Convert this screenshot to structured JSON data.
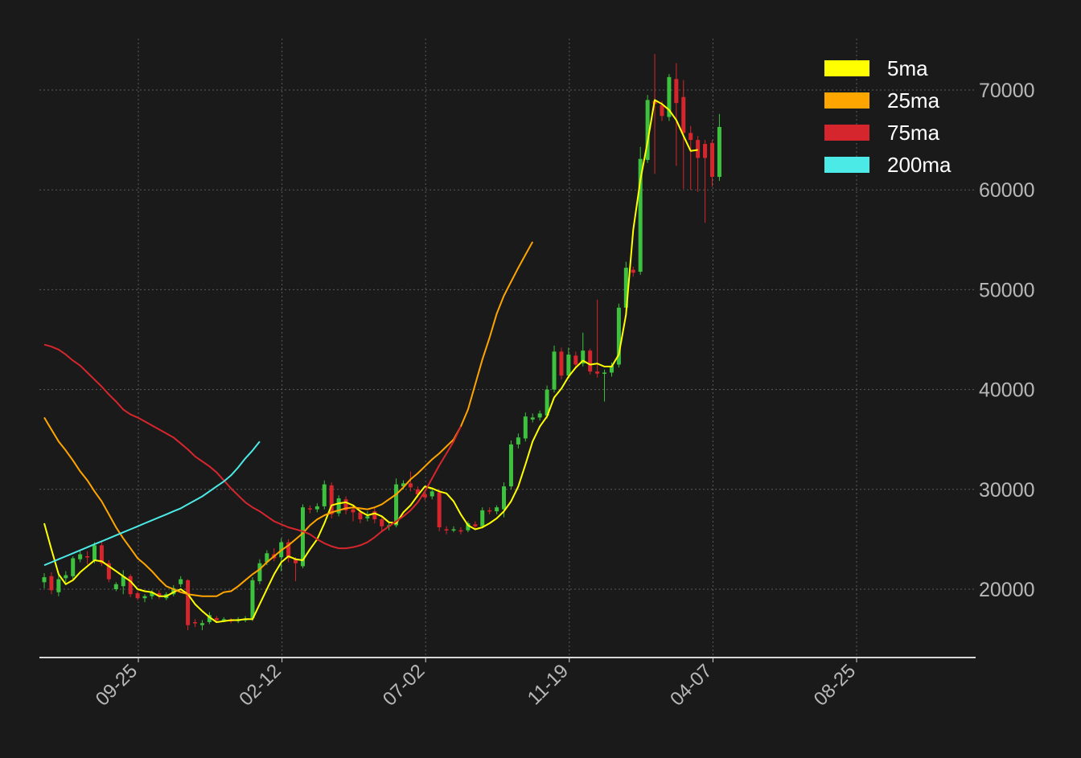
{
  "colors": {
    "background": "#1a1a1a",
    "grid": "#5a5a5a",
    "axis": "#d8d8d8",
    "tick_text": "#b8b8b8",
    "legend_text": "#ffffff",
    "up": "#3ec13e",
    "down": "#d6262d"
  },
  "chart_data": {
    "type": "candlestick",
    "title": "",
    "xlabel": "",
    "ylabel": "",
    "x_ticks": [
      "09-25",
      "02-12",
      "07-02",
      "11-19",
      "04-07",
      "08-25"
    ],
    "y_ticks": [
      20000,
      30000,
      40000,
      50000,
      60000,
      70000
    ],
    "ylim": [
      13200,
      75500
    ],
    "grid": true,
    "legend_position": "top-right",
    "series": [
      {
        "name": "5ma",
        "color": "#ffff00",
        "values": [
          26600,
          24000,
          21500,
          20500,
          20900,
          21700,
          22300,
          22900,
          22800,
          22300,
          21800,
          21300,
          20800,
          20000,
          19800,
          19700,
          19300,
          19300,
          19700,
          20000,
          19500,
          18500,
          17800,
          17200,
          16700,
          16800,
          16900,
          16900,
          17000,
          17000,
          18500,
          20000,
          21500,
          22700,
          23300,
          23000,
          22900,
          24000,
          25000,
          26600,
          28400,
          28600,
          28700,
          28400,
          27800,
          27400,
          27600,
          27300,
          26700,
          26600,
          27700,
          28400,
          29400,
          30300,
          30100,
          29800,
          29600,
          28800,
          27500,
          26400,
          26000,
          26200,
          26600,
          27100,
          27800,
          28800,
          30300,
          32500,
          34800,
          36300,
          37300,
          39200,
          40100,
          41300,
          42200,
          42900,
          42500,
          42600,
          42300,
          42300,
          43500,
          47500,
          56000,
          61000,
          64800,
          69000,
          68600,
          68000,
          67000,
          65400,
          63900,
          64000
        ]
      },
      {
        "name": "25ma",
        "color": "#ffa500",
        "values": [
          37200,
          36000,
          34800,
          33900,
          32900,
          31800,
          30900,
          29800,
          28800,
          27500,
          26200,
          25100,
          24100,
          23100,
          22500,
          21800,
          21000,
          20300,
          20000,
          19700,
          19500,
          19400,
          19300,
          19300,
          19300,
          19700,
          19800,
          20300,
          20900,
          21500,
          22000,
          22700,
          23300,
          23900,
          24400,
          25000,
          25600,
          26400,
          27000,
          27400,
          27700,
          27900,
          28100,
          28200,
          28100,
          28000,
          28200,
          28500,
          29000,
          29500,
          30200,
          31000,
          31600,
          32300,
          33000,
          33600,
          34300,
          35000,
          36300,
          38000,
          40500,
          43000,
          45200,
          47600,
          49400,
          50800,
          52200,
          53500,
          54800
        ]
      },
      {
        "name": "75ma",
        "color": "#d6262d",
        "values": [
          44500,
          44300,
          44000,
          43500,
          42900,
          42400,
          41700,
          41000,
          40300,
          39500,
          38800,
          38000,
          37500,
          37200,
          36800,
          36400,
          36000,
          35600,
          35200,
          34600,
          34000,
          33300,
          32800,
          32300,
          31700,
          30900,
          30100,
          29400,
          28700,
          28200,
          27800,
          27300,
          26800,
          26500,
          26200,
          26000,
          25800,
          25500,
          25000,
          24600,
          24300,
          24100,
          24100,
          24200,
          24400,
          24700,
          25200,
          25800,
          26300,
          26800,
          27300,
          27900,
          28700,
          29800,
          31100,
          32400,
          33600,
          34800,
          36300
        ]
      },
      {
        "name": "200ma",
        "color": "#4ceae6",
        "values": [
          22400,
          22700,
          23000,
          23300,
          23600,
          23900,
          24200,
          24500,
          24800,
          25100,
          25400,
          25700,
          26000,
          26300,
          26600,
          26900,
          27200,
          27500,
          27800,
          28100,
          28500,
          28900,
          29300,
          29800,
          30300,
          30800,
          31400,
          32200,
          33100,
          33900,
          34800
        ]
      }
    ],
    "candles": [
      [
        20700,
        21200,
        20100,
        21600
      ],
      [
        21300,
        19900,
        19500,
        21700
      ],
      [
        19700,
        21000,
        19300,
        21400
      ],
      [
        21100,
        21400,
        20700,
        21800
      ],
      [
        21300,
        23100,
        21000,
        23300
      ],
      [
        23000,
        23500,
        22700,
        23800
      ],
      [
        23300,
        23200,
        22500,
        23800
      ],
      [
        22900,
        24400,
        22600,
        24700
      ],
      [
        24400,
        22600,
        22300,
        24800
      ],
      [
        22600,
        21000,
        20700,
        22900
      ],
      [
        20000,
        20500,
        19800,
        20700
      ],
      [
        20300,
        21300,
        19500,
        21900
      ],
      [
        21300,
        19500,
        19200,
        21500
      ],
      [
        19600,
        19100,
        18900,
        19800
      ],
      [
        19100,
        19300,
        18700,
        19500
      ],
      [
        19300,
        19700,
        19000,
        19900
      ],
      [
        19600,
        19300,
        19000,
        19900
      ],
      [
        19100,
        19500,
        18900,
        19700
      ],
      [
        19500,
        20100,
        19300,
        20400
      ],
      [
        20500,
        21000,
        20200,
        21300
      ],
      [
        20900,
        16400,
        15900,
        21000
      ],
      [
        16700,
        16600,
        16200,
        17000
      ],
      [
        16400,
        16600,
        15900,
        16900
      ],
      [
        16700,
        17400,
        16500,
        17700
      ],
      [
        17100,
        16900,
        16700,
        17300
      ],
      [
        16900,
        17000,
        16700,
        17200
      ],
      [
        16900,
        16800,
        16600,
        17100
      ],
      [
        16800,
        17000,
        16600,
        17200
      ],
      [
        16900,
        17000,
        16700,
        17300
      ],
      [
        17100,
        20900,
        16800,
        21200
      ],
      [
        20800,
        22600,
        20500,
        23000
      ],
      [
        22700,
        23600,
        22400,
        23900
      ],
      [
        23500,
        23100,
        22800,
        24100
      ],
      [
        23200,
        24700,
        21800,
        25100
      ],
      [
        24700,
        23100,
        22700,
        25000
      ],
      [
        23000,
        22600,
        20800,
        23200
      ],
      [
        22300,
        28200,
        22100,
        28500
      ],
      [
        28100,
        28000,
        27600,
        28400
      ],
      [
        28000,
        28300,
        27700,
        28600
      ],
      [
        28300,
        30500,
        28000,
        30900
      ],
      [
        30400,
        27500,
        27100,
        30700
      ],
      [
        27600,
        29100,
        27300,
        29400
      ],
      [
        29000,
        27900,
        27500,
        29300
      ],
      [
        28000,
        27700,
        26800,
        28400
      ],
      [
        27700,
        27000,
        26600,
        28000
      ],
      [
        27100,
        27300,
        26800,
        27800
      ],
      [
        27800,
        27000,
        26600,
        28200
      ],
      [
        27000,
        26300,
        25800,
        27200
      ],
      [
        26300,
        26400,
        25900,
        26800
      ],
      [
        26400,
        30500,
        26200,
        31100
      ],
      [
        30300,
        30600,
        30000,
        30900
      ],
      [
        30600,
        30200,
        29800,
        31800
      ],
      [
        30000,
        29500,
        29200,
        30300
      ],
      [
        29500,
        29200,
        28900,
        29800
      ],
      [
        29300,
        29800,
        29000,
        30100
      ],
      [
        29700,
        26200,
        25800,
        30000
      ],
      [
        26000,
        25900,
        25500,
        26300
      ],
      [
        25900,
        26000,
        25700,
        26300
      ],
      [
        25900,
        25800,
        25500,
        26200
      ],
      [
        25900,
        26600,
        25700,
        26800
      ],
      [
        26500,
        26300,
        26000,
        26800
      ],
      [
        26300,
        27900,
        26100,
        28200
      ],
      [
        27900,
        27800,
        27500,
        28200
      ],
      [
        27800,
        28200,
        27500,
        28400
      ],
      [
        28000,
        30300,
        27200,
        30700
      ],
      [
        30300,
        34500,
        30000,
        34900
      ],
      [
        34500,
        35200,
        34100,
        35600
      ],
      [
        35100,
        37300,
        34800,
        37700
      ],
      [
        37000,
        37200,
        36700,
        37600
      ],
      [
        37200,
        37600,
        36900,
        37900
      ],
      [
        37400,
        40000,
        37100,
        40400
      ],
      [
        40000,
        43800,
        39700,
        44400
      ],
      [
        43800,
        41400,
        41000,
        44200
      ],
      [
        41400,
        43500,
        41100,
        44200
      ],
      [
        43400,
        42500,
        42100,
        43800
      ],
      [
        42600,
        43900,
        42300,
        45700
      ],
      [
        43900,
        41800,
        41500,
        44100
      ],
      [
        41800,
        41600,
        41200,
        49000
      ],
      [
        41600,
        41700,
        38800,
        42000
      ],
      [
        41700,
        42400,
        41300,
        42700
      ],
      [
        42500,
        48200,
        42200,
        48600
      ],
      [
        48200,
        52200,
        47900,
        52800
      ],
      [
        52000,
        51700,
        51300,
        52300
      ],
      [
        51800,
        63100,
        51500,
        64300
      ],
      [
        63000,
        69000,
        62700,
        69500
      ],
      [
        68900,
        68600,
        61600,
        73600
      ],
      [
        68500,
        67400,
        66900,
        68900
      ],
      [
        67300,
        71300,
        66900,
        71600
      ],
      [
        71100,
        68700,
        62400,
        72700
      ],
      [
        69300,
        65700,
        60100,
        71000
      ],
      [
        65700,
        65000,
        60000,
        66400
      ],
      [
        65000,
        63200,
        59800,
        65400
      ],
      [
        64600,
        63200,
        56700,
        65000
      ],
      [
        64700,
        61300,
        60300,
        65000
      ],
      [
        61300,
        66300,
        60900,
        67600
      ]
    ]
  }
}
